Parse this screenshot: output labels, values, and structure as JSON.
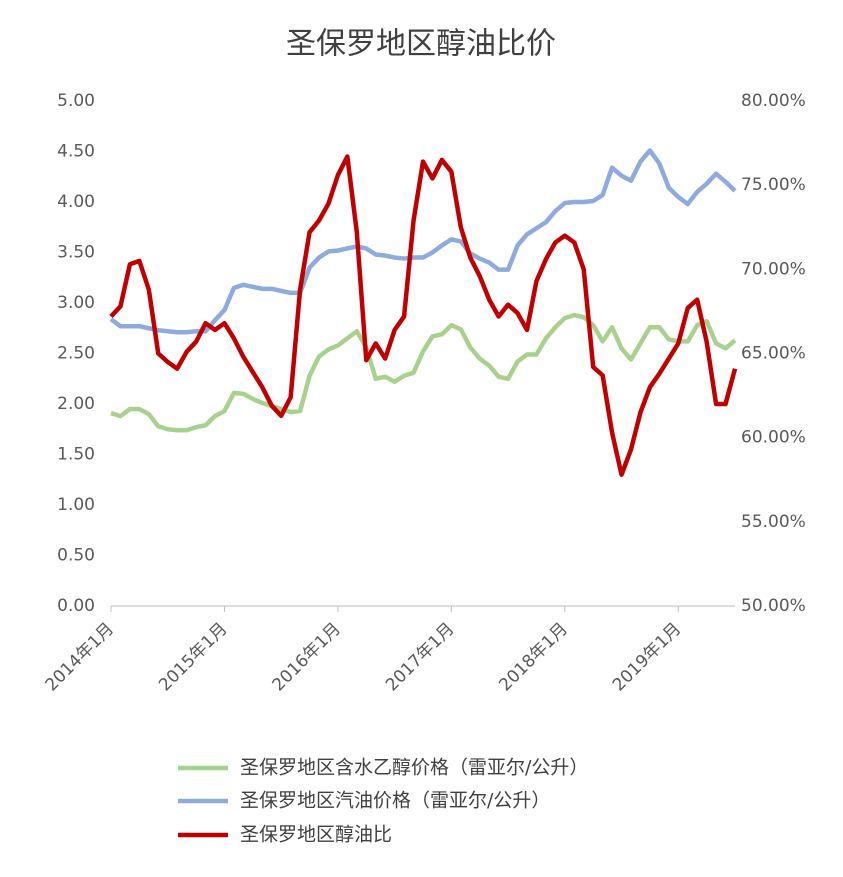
{
  "chart_data": {
    "type": "line",
    "title": "圣保罗地区醇油比价",
    "categories": [
      "2014年1月",
      null,
      null,
      null,
      null,
      null,
      null,
      null,
      null,
      null,
      null,
      null,
      "2015年1月",
      null,
      null,
      null,
      null,
      null,
      null,
      null,
      null,
      null,
      null,
      null,
      "2016年1月",
      null,
      null,
      null,
      null,
      null,
      null,
      null,
      null,
      null,
      null,
      null,
      "2017年1月",
      null,
      null,
      null,
      null,
      null,
      null,
      null,
      null,
      null,
      null,
      null,
      "2018年1月",
      null,
      null,
      null,
      null,
      null,
      null,
      null,
      null,
      null,
      null,
      null,
      "2019年1月",
      null,
      null,
      null,
      null,
      null,
      null
    ],
    "series": [
      {
        "name": "圣保罗地区含水乙醇价格（雷亚尔/公升）",
        "color": "#a9d18e",
        "values": [
          1.91,
          1.88,
          1.95,
          1.95,
          1.9,
          1.78,
          1.75,
          1.74,
          1.74,
          1.77,
          1.79,
          1.88,
          1.93,
          2.11,
          2.1,
          2.05,
          2.01,
          1.98,
          1.95,
          1.92,
          1.93,
          2.28,
          2.47,
          2.54,
          2.58,
          2.65,
          2.72,
          2.56,
          2.25,
          2.27,
          2.22,
          2.28,
          2.31,
          2.52,
          2.67,
          2.69,
          2.78,
          2.74,
          2.56,
          2.45,
          2.38,
          2.27,
          2.25,
          2.42,
          2.49,
          2.49,
          2.65,
          2.76,
          2.85,
          2.88,
          2.86,
          2.78,
          2.62,
          2.76,
          2.55,
          2.44,
          2.6,
          2.76,
          2.76,
          2.64,
          2.62,
          2.62,
          2.78,
          2.82,
          2.6,
          2.55,
          2.63
        ]
      },
      {
        "name": "圣保罗地区汽油价格（雷亚尔/公升）",
        "color": "#8faadc",
        "values": [
          2.84,
          2.77,
          2.77,
          2.77,
          2.75,
          2.73,
          2.72,
          2.71,
          2.71,
          2.72,
          2.72,
          2.83,
          2.93,
          3.15,
          3.18,
          3.16,
          3.14,
          3.14,
          3.12,
          3.1,
          3.1,
          3.35,
          3.45,
          3.51,
          3.52,
          3.54,
          3.56,
          3.54,
          3.48,
          3.47,
          3.45,
          3.44,
          3.45,
          3.45,
          3.5,
          3.57,
          3.63,
          3.61,
          3.49,
          3.44,
          3.4,
          3.33,
          3.33,
          3.57,
          3.68,
          3.74,
          3.8,
          3.91,
          3.99,
          4.0,
          4.0,
          4.01,
          4.07,
          4.34,
          4.26,
          4.21,
          4.4,
          4.51,
          4.38,
          4.14,
          4.05,
          3.98,
          4.1,
          4.18,
          4.28,
          4.2,
          4.11
        ]
      },
      {
        "name": "圣保罗地区醇油比",
        "color": "#c00000",
        "axis": "y2",
        "values": [
          67.2,
          67.8,
          70.3,
          70.5,
          68.8,
          65.0,
          64.5,
          64.1,
          65.1,
          65.7,
          66.8,
          66.4,
          66.8,
          65.9,
          64.8,
          63.9,
          63.0,
          61.9,
          61.3,
          62.4,
          68.8,
          72.2,
          72.9,
          73.9,
          75.6,
          76.7,
          72.2,
          64.6,
          65.6,
          64.7,
          66.4,
          67.2,
          72.9,
          76.4,
          75.4,
          76.5,
          75.8,
          72.5,
          70.7,
          69.6,
          68.2,
          67.2,
          67.9,
          67.4,
          66.4,
          69.3,
          70.6,
          71.6,
          72.0,
          71.6,
          70.0,
          64.2,
          63.7,
          60.3,
          57.8,
          59.3,
          61.5,
          63.0,
          63.8,
          64.7,
          65.6,
          67.7,
          68.2,
          65.7,
          62.0,
          62.0,
          64.1
        ]
      }
    ],
    "ylim": [
      0,
      5
    ],
    "yticks": [
      {
        "value": 0,
        "label": "0.00"
      },
      {
        "value": 0.5,
        "label": "0.50"
      },
      {
        "value": 1,
        "label": "1.00"
      },
      {
        "value": 1.5,
        "label": "1.50"
      },
      {
        "value": 2,
        "label": "2.00"
      },
      {
        "value": 2.5,
        "label": "2.50"
      },
      {
        "value": 3,
        "label": "3.00"
      },
      {
        "value": 3.5,
        "label": "3.50"
      },
      {
        "value": 4,
        "label": "4.00"
      },
      {
        "value": 4.5,
        "label": "4.50"
      },
      {
        "value": 5,
        "label": "5.00"
      }
    ],
    "y2lim": [
      50,
      80
    ],
    "y2ticks": [
      {
        "value": 50,
        "label": "50.00%"
      },
      {
        "value": 55,
        "label": "55.00%"
      },
      {
        "value": 60,
        "label": "60.00%"
      },
      {
        "value": 65,
        "label": "65.00%"
      },
      {
        "value": 70,
        "label": "70.00%"
      },
      {
        "value": 75,
        "label": "75.00%"
      },
      {
        "value": 80,
        "label": "80.00%"
      }
    ],
    "grid": false,
    "legend": "bottom"
  }
}
